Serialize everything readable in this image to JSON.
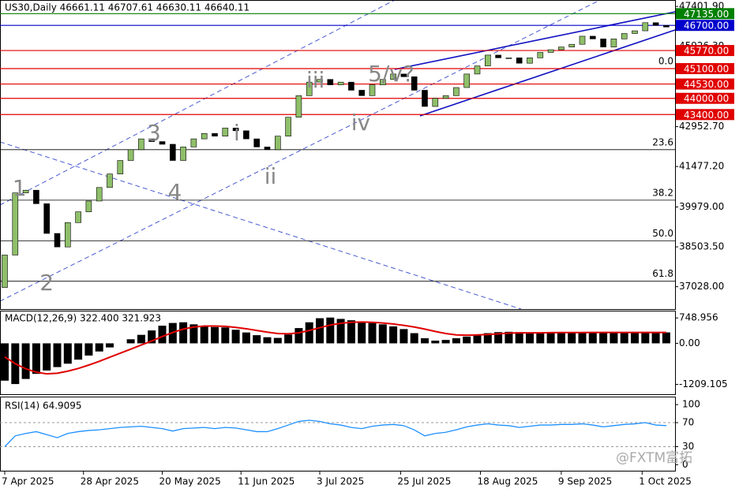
{
  "chart_data": {
    "type": "candlestick",
    "title": "US30,Daily  46661.11 46707.61 46630.11 46640.11",
    "open": [
      37000,
      38200,
      40500,
      40600,
      40100,
      39000,
      38500,
      39400,
      39800,
      40200,
      40700,
      41200,
      41700,
      42100,
      42500,
      42400,
      42300,
      41700,
      42200,
      42500,
      42700,
      42600,
      42900,
      42800,
      42500,
      42200,
      42100,
      42600,
      43300,
      44100,
      44600,
      44700,
      44500,
      44600,
      44300,
      44100,
      44500,
      44700,
      44900,
      44800,
      44300,
      43700,
      44000,
      44100,
      44400,
      44900,
      45200,
      45600,
      45500,
      45500,
      45300,
      45500,
      45700,
      45800,
      45900,
      46000,
      46300,
      46200,
      45900,
      46200,
      46400,
      46500,
      46800,
      46700
    ],
    "close": [
      38200,
      40500,
      40600,
      40100,
      39000,
      38500,
      39400,
      39800,
      40200,
      40700,
      41200,
      41700,
      42100,
      42500,
      42400,
      42300,
      41700,
      42200,
      42500,
      42700,
      42600,
      42900,
      42800,
      42500,
      42200,
      42100,
      42600,
      43300,
      44100,
      44600,
      44700,
      44500,
      44600,
      44300,
      44100,
      44500,
      44700,
      44900,
      44800,
      44300,
      43700,
      44000,
      44100,
      44400,
      44900,
      45200,
      45600,
      45500,
      45500,
      45300,
      45500,
      45700,
      45800,
      45900,
      46000,
      46300,
      46200,
      45900,
      46200,
      46400,
      46500,
      46800,
      46700,
      46640
    ],
    "colors": {
      "up": "#8fbf6a",
      "down": "#000000"
    },
    "ylim": [
      36200,
      47640
    ],
    "yticks": [
      {
        "value": 47401.9,
        "label": "47401.90"
      },
      {
        "value": 45926.3,
        "label": "45926.30"
      },
      {
        "value": 42952.7,
        "label": "42952.70"
      },
      {
        "value": 41477.2,
        "label": "41477.20"
      },
      {
        "value": 39979,
        "label": "39979.00"
      },
      {
        "value": 38503.5,
        "label": "38503.50"
      },
      {
        "value": 37028,
        "label": "37028.00"
      }
    ],
    "levels": [
      {
        "value": 47135,
        "label": "47135.00",
        "color": "#008000"
      },
      {
        "value": 46700,
        "label": "46700.00",
        "color": "#0000cc"
      },
      {
        "value": 45770,
        "label": "45770.00",
        "color": "#e00000"
      },
      {
        "value": 45100,
        "label": "45100.00",
        "color": "#e00000"
      },
      {
        "value": 44530,
        "label": "44530.00",
        "color": "#e00000"
      },
      {
        "value": 44000,
        "label": "44000.00",
        "color": "#e00000"
      },
      {
        "value": 43400,
        "label": "43400.00",
        "color": "#e00000"
      }
    ],
    "fib": [
      {
        "value": 45100,
        "label": "0.0"
      },
      {
        "value": 42100,
        "label": "23.6"
      },
      {
        "value": 40230,
        "label": "38.2"
      },
      {
        "value": 38720,
        "label": "50.0"
      },
      {
        "value": 37230,
        "label": "61.8"
      }
    ],
    "annotations": [
      {
        "text": "1",
        "x": 1.4,
        "y": 40640
      },
      {
        "text": "2",
        "x": 4,
        "y": 37130
      },
      {
        "text": "3",
        "x": 14.2,
        "y": 42680
      },
      {
        "text": "4",
        "x": 16.2,
        "y": 40490
      },
      {
        "text": "i",
        "x": 22.1,
        "y": 42680
      },
      {
        "text": "ii",
        "x": 25.3,
        "y": 41075
      },
      {
        "text": "iii",
        "x": 29.6,
        "y": 44630
      },
      {
        "text": "iv",
        "x": 33.9,
        "y": 43060
      },
      {
        "text": "5/v?",
        "x": 36.8,
        "y": 44870
      }
    ],
    "xticks": [
      {
        "value": 0,
        "label": "7 Apr 2025"
      },
      {
        "value": 7.5,
        "label": "28 Apr 2025"
      },
      {
        "value": 15,
        "label": "20 May 2025"
      },
      {
        "value": 22.5,
        "label": "11 Jun 2025"
      },
      {
        "value": 30,
        "label": "3 Jul 2025"
      },
      {
        "value": 37.7,
        "label": "25 Jul 2025"
      },
      {
        "value": 45.3,
        "label": "18 Aug 2025"
      },
      {
        "value": 53,
        "label": "9 Sep 2025"
      },
      {
        "value": 60.7,
        "label": "1 Oct 2025"
      }
    ],
    "macd": {
      "label": "MACD(12,26,9) 322.400 321.923",
      "ylim": [
        -1500,
        940
      ],
      "yticks": [
        748.956,
        {
          "value": 0,
          "label": "0.00"
        },
        -1209.105
      ],
      "histogram": [
        -1100,
        -1200,
        -1050,
        -900,
        -800,
        -700,
        -600,
        -480,
        -360,
        -240,
        -120,
        0,
        120,
        250,
        380,
        520,
        600,
        620,
        560,
        520,
        480,
        470,
        400,
        320,
        240,
        180,
        160,
        260,
        450,
        620,
        740,
        760,
        720,
        680,
        640,
        600,
        560,
        500,
        420,
        300,
        150,
        80,
        100,
        150,
        200,
        260,
        300,
        330,
        340,
        330,
        320,
        320,
        330,
        330,
        320,
        320,
        330,
        320,
        320,
        320,
        330,
        320,
        322,
        322
      ],
      "signal": [
        -400,
        -600,
        -750,
        -850,
        -900,
        -880,
        -820,
        -740,
        -640,
        -530,
        -410,
        -290,
        -170,
        -50,
        70,
        200,
        320,
        420,
        480,
        510,
        510,
        500,
        470,
        430,
        380,
        330,
        290,
        280,
        310,
        380,
        460,
        540,
        590,
        620,
        630,
        620,
        600,
        570,
        530,
        480,
        420,
        350,
        290,
        250,
        240,
        250,
        260,
        280,
        300,
        310,
        310,
        310,
        315,
        318,
        318,
        318,
        320,
        320,
        320,
        320,
        321,
        321,
        322,
        322
      ],
      "signal_color": "#e00000"
    },
    "rsi": {
      "label": "RSI(14) 64.9095",
      "ylim": [
        -10,
        112
      ],
      "yticks": [
        100,
        70,
        30,
        0
      ],
      "color": "#1e90ff",
      "values": [
        30,
        48,
        52,
        55,
        50,
        45,
        52,
        55,
        57,
        58,
        60,
        62,
        63,
        64,
        62,
        60,
        56,
        60,
        61,
        62,
        60,
        62,
        61,
        58,
        55,
        55,
        60,
        66,
        72,
        74,
        72,
        68,
        66,
        62,
        60,
        64,
        66,
        67,
        65,
        58,
        48,
        52,
        54,
        58,
        63,
        66,
        68,
        66,
        65,
        62,
        64,
        66,
        66,
        67,
        67,
        68,
        66,
        63,
        65,
        67,
        68,
        70,
        66,
        65
      ]
    },
    "watermark": "@FXTM富拓"
  }
}
